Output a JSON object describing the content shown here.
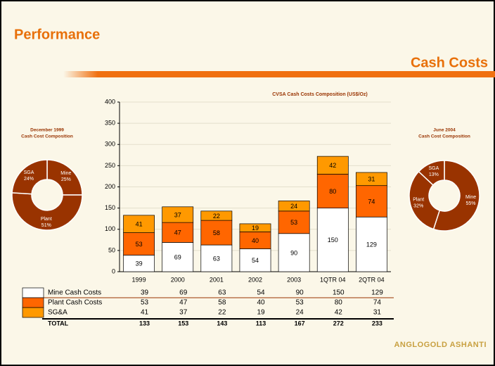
{
  "header": {
    "title": "Performance",
    "subtitle": "Cash Costs"
  },
  "logo": "ANGLOGOLD ASHANTI",
  "chart_data": [
    {
      "type": "bar",
      "stacked": true,
      "title": "CVSA Cash Costs Composition (US$/Oz)",
      "categories": [
        "1999",
        "2000",
        "2001",
        "2002",
        "2003",
        "1QTR 04",
        "2QTR 04"
      ],
      "series": [
        {
          "name": "Mine Cash Costs",
          "color": "#ffffff",
          "values": [
            39,
            69,
            63,
            54,
            90,
            150,
            129
          ]
        },
        {
          "name": "Plant Cash Costs",
          "color": "#ff6600",
          "values": [
            53,
            47,
            58,
            40,
            53,
            80,
            74
          ]
        },
        {
          "name": "SG&A",
          "color": "#ff9900",
          "values": [
            41,
            37,
            22,
            19,
            24,
            42,
            31
          ]
        }
      ],
      "total_label": "TOTAL",
      "totals": [
        133,
        153,
        143,
        113,
        167,
        272,
        233
      ],
      "ylim": [
        0,
        400
      ],
      "yticks": [
        0,
        50,
        100,
        150,
        200,
        250,
        300,
        350,
        400
      ],
      "grid": true
    },
    {
      "type": "pie",
      "donut": true,
      "title": [
        "December 1999",
        "Cash Cost Composition"
      ],
      "categories": [
        "Mine",
        "Plant",
        "SGA"
      ],
      "values": [
        25,
        51,
        24
      ],
      "value_labels": [
        "25%",
        "51%",
        "24%"
      ],
      "color": "#993300"
    },
    {
      "type": "pie",
      "donut": true,
      "title": [
        "June 2004",
        "Cash Cost Composition"
      ],
      "categories": [
        "Mine",
        "Plant",
        "SGA"
      ],
      "values": [
        55,
        32,
        13
      ],
      "value_labels": [
        "55%",
        "32%",
        "13%"
      ],
      "color": "#993300"
    }
  ]
}
